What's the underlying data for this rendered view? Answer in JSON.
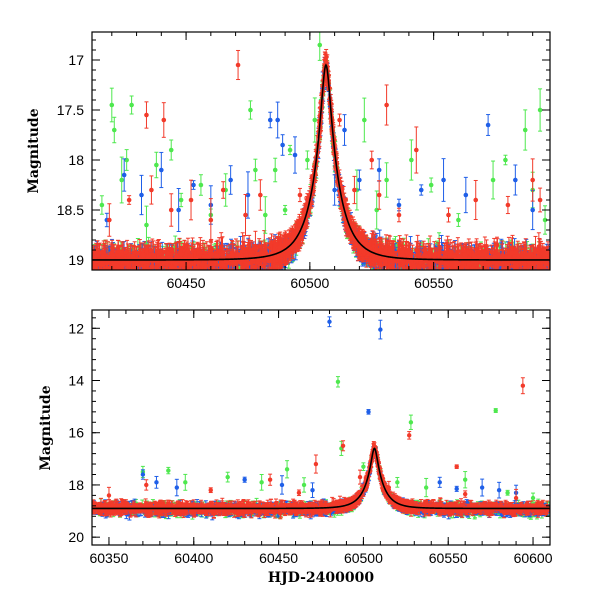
{
  "chart_data": [
    {
      "type": "scatter",
      "title": "",
      "xlabel": "",
      "ylabel": "Magnitude",
      "xlim": [
        60412,
        60597
      ],
      "ylim": [
        19.1,
        16.72
      ],
      "y_inverted": true,
      "x_ticks": [
        60450,
        60500,
        60550
      ],
      "x_tick_labels": [
        "60450",
        "60500",
        "60550"
      ],
      "y_ticks": [
        17,
        17.5,
        18,
        18.5,
        19
      ],
      "y_tick_labels": [
        "17",
        "17.5",
        "18",
        "18.5",
        "19"
      ],
      "colors": {
        "blue": "#1f5fe8",
        "green": "#4ee84e",
        "red": "#f23a2a",
        "model": "#000000"
      },
      "model_curve": {
        "description": "microlensing light curve",
        "t0": 60506.5,
        "baseline": 19.0,
        "peak": 17.05,
        "u0": 0.17,
        "tE": 10
      },
      "series": [
        {
          "color": "green",
          "density": "baseline",
          "outliers": [
            [
              60416,
              18.45
            ],
            [
              60420,
              17.45
            ],
            [
              60421,
              17.7
            ],
            [
              60424,
              18.2
            ],
            [
              60426,
              18.0
            ],
            [
              60428,
              17.45
            ],
            [
              60434,
              18.65
            ],
            [
              60438,
              18.05
            ],
            [
              60444,
              17.9
            ],
            [
              60448,
              18.4
            ],
            [
              60456,
              18.25
            ],
            [
              60460,
              18.55
            ],
            [
              60466,
              18.3
            ],
            [
              60476,
              17.5
            ],
            [
              60478,
              18.1
            ],
            [
              60482,
              18.55
            ],
            [
              60486,
              18.1
            ],
            [
              60490,
              18.5
            ],
            [
              60492,
              17.9
            ],
            [
              60499,
              18.0
            ],
            [
              60502,
              17.6
            ],
            [
              60504,
              16.85
            ],
            [
              60519,
              18.3
            ],
            [
              60522,
              17.6
            ],
            [
              60527,
              18.5
            ],
            [
              60531,
              18.2
            ],
            [
              60541,
              18.0
            ],
            [
              60549,
              18.25
            ],
            [
              60560,
              18.6
            ],
            [
              60574,
              18.2
            ],
            [
              60579,
              18.0
            ],
            [
              60587,
              17.7
            ],
            [
              60590,
              18.3
            ],
            [
              60593,
              17.5
            ],
            [
              60595,
              18.6
            ]
          ]
        },
        {
          "color": "blue",
          "density": "baseline",
          "outliers": [
            [
              60418,
              18.6
            ],
            [
              60425,
              18.15
            ],
            [
              60432,
              18.35
            ],
            [
              60440,
              18.1
            ],
            [
              60447,
              18.5
            ],
            [
              60453,
              18.25
            ],
            [
              60460,
              18.45
            ],
            [
              60468,
              18.2
            ],
            [
              60475,
              18.35
            ],
            [
              60484,
              17.6
            ],
            [
              60487,
              17.6
            ],
            [
              60489,
              17.85
            ],
            [
              60494,
              17.95
            ],
            [
              60510,
              18.3
            ],
            [
              60514,
              17.7
            ],
            [
              60520,
              18.2
            ],
            [
              60528,
              18.1
            ],
            [
              60536,
              18.45
            ],
            [
              60545,
              18.3
            ],
            [
              60554,
              18.2
            ],
            [
              60563,
              18.35
            ],
            [
              60572,
              17.65
            ],
            [
              60583,
              18.2
            ],
            [
              60590,
              18.5
            ]
          ]
        },
        {
          "color": "red",
          "density": "baseline",
          "outliers": [
            [
              60419,
              18.6
            ],
            [
              60427,
              18.4
            ],
            [
              60434,
              17.55
            ],
            [
              60436,
              18.3
            ],
            [
              60441,
              17.6
            ],
            [
              60444,
              18.5
            ],
            [
              60452,
              18.4
            ],
            [
              60460,
              18.6
            ],
            [
              60465,
              18.3
            ],
            [
              60471,
              17.05
            ],
            [
              60474,
              18.55
            ],
            [
              60480,
              18.35
            ],
            [
              60496,
              18.35
            ],
            [
              60499,
              18.5
            ],
            [
              60512,
              17.6
            ],
            [
              60518,
              18.3
            ],
            [
              60525,
              18.0
            ],
            [
              60528,
              18.35
            ],
            [
              60531,
              17.45
            ],
            [
              60536,
              18.55
            ],
            [
              60543,
              17.9
            ],
            [
              60556,
              18.55
            ],
            [
              60567,
              18.4
            ],
            [
              60580,
              18.45
            ],
            [
              60590,
              18.2
            ],
            [
              60593,
              18.4
            ]
          ]
        }
      ]
    },
    {
      "type": "scatter",
      "title": "",
      "xlabel": "HJD-2400000",
      "ylabel": "Magnitude",
      "xlim": [
        60340,
        60610
      ],
      "ylim": [
        20.3,
        11.3
      ],
      "y_inverted": true,
      "x_ticks": [
        60350,
        60400,
        60450,
        60500,
        60550,
        60600
      ],
      "x_tick_labels": [
        "60350",
        "60400",
        "60450",
        "60500",
        "60550",
        "60600"
      ],
      "y_ticks": [
        12,
        14,
        16,
        18,
        20
      ],
      "y_tick_labels": [
        "12",
        "14",
        "16",
        "18",
        "20"
      ],
      "colors": {
        "blue": "#1f5fe8",
        "green": "#4ee84e",
        "red": "#f23a2a",
        "model": "#000000"
      },
      "model_curve": {
        "description": "microlensing light curve",
        "t0": 60506.5,
        "baseline": 18.9,
        "peak": 16.6,
        "u0": 0.17,
        "tE": 10
      },
      "series": [
        {
          "color": "blue",
          "density": "baseline",
          "outliers": [
            [
              60480,
              11.75
            ],
            [
              60510,
              12.05
            ],
            [
              60503,
              15.2
            ],
            [
              60370,
              17.6
            ],
            [
              60378,
              17.9
            ],
            [
              60390,
              18.1
            ],
            [
              60430,
              17.8
            ],
            [
              60452,
              18.0
            ],
            [
              60470,
              18.2
            ],
            [
              60545,
              17.9
            ],
            [
              60555,
              18.15
            ],
            [
              60570,
              18.1
            ],
            [
              60580,
              18.2
            ],
            [
              60590,
              18.3
            ]
          ]
        },
        {
          "color": "green",
          "density": "baseline",
          "outliers": [
            [
              60485,
              14.05
            ],
            [
              60578,
              15.15
            ],
            [
              60528,
              15.6
            ],
            [
              60487,
              16.6
            ],
            [
              60370,
              17.5
            ],
            [
              60385,
              17.45
            ],
            [
              60395,
              17.9
            ],
            [
              60420,
              17.7
            ],
            [
              60440,
              17.9
            ],
            [
              60455,
              17.4
            ],
            [
              60465,
              18.0
            ],
            [
              60500,
              17.3
            ],
            [
              60520,
              17.9
            ],
            [
              60537,
              18.1
            ],
            [
              60560,
              17.8
            ],
            [
              60585,
              18.3
            ],
            [
              60600,
              18.5
            ]
          ]
        },
        {
          "color": "red",
          "density": "baseline",
          "outliers": [
            [
              60594,
              14.2
            ],
            [
              60527,
              16.1
            ],
            [
              60488,
              16.5
            ],
            [
              60472,
              17.2
            ],
            [
              60555,
              17.3
            ],
            [
              60350,
              18.4
            ],
            [
              60372,
              18.0
            ],
            [
              60410,
              18.2
            ],
            [
              60445,
              17.8
            ],
            [
              60462,
              18.3
            ],
            [
              60498,
              17.7
            ],
            [
              60515,
              18.1
            ],
            [
              60560,
              18.35
            ],
            [
              60590,
              18.5
            ]
          ]
        }
      ]
    }
  ]
}
